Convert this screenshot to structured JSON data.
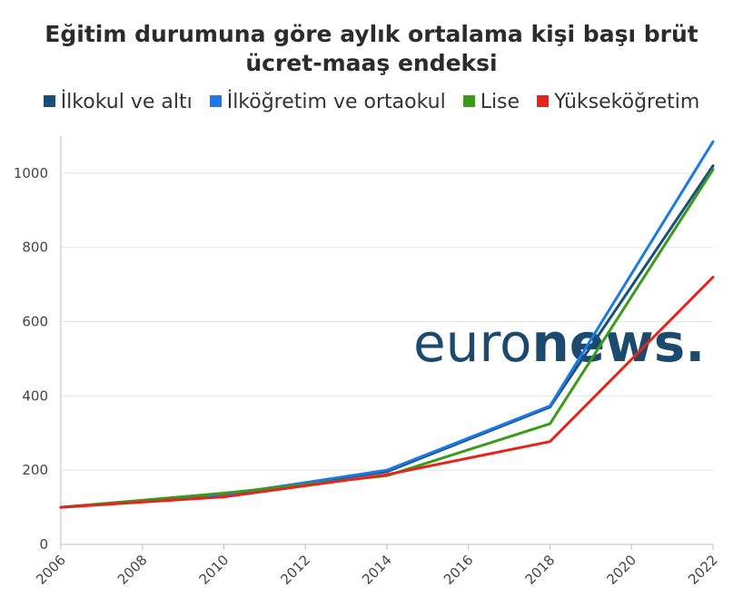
{
  "chart_data": {
    "type": "line",
    "title_line1": "Eğitim durumuna göre aylık ortalama kişi başı brüt",
    "title_line2": "ücret-maaş endeksi",
    "x": [
      2006,
      2010,
      2014,
      2018,
      2022
    ],
    "x_ticks": [
      "2006",
      "2008",
      "2010",
      "2012",
      "2014",
      "2016",
      "2018",
      "2020",
      "2022"
    ],
    "y_ticks": [
      "0",
      "200",
      "400",
      "600",
      "800",
      "1000"
    ],
    "xlim": [
      2006,
      2022
    ],
    "ylim": [
      0,
      1100
    ],
    "grid": "horizontal",
    "legend_position": "top",
    "series": [
      {
        "name": "İlkokul ve altı",
        "color": "#1a4f7a",
        "values": [
          100,
          135,
          196,
          370,
          1020
        ]
      },
      {
        "name": "İlköğretim ve ortaokul",
        "color": "#1a7ae6",
        "values": [
          100,
          133,
          200,
          373,
          1085
        ]
      },
      {
        "name": "Lise",
        "color": "#3a9a1a",
        "values": [
          100,
          138,
          185,
          325,
          1010
        ]
      },
      {
        "name": "Yükseköğretim",
        "color": "#e8231c",
        "values": [
          100,
          128,
          188,
          277,
          720
        ]
      }
    ]
  },
  "watermark": {
    "text_light": "euro",
    "text_bold": "news.",
    "color": "#1c4a6e"
  }
}
